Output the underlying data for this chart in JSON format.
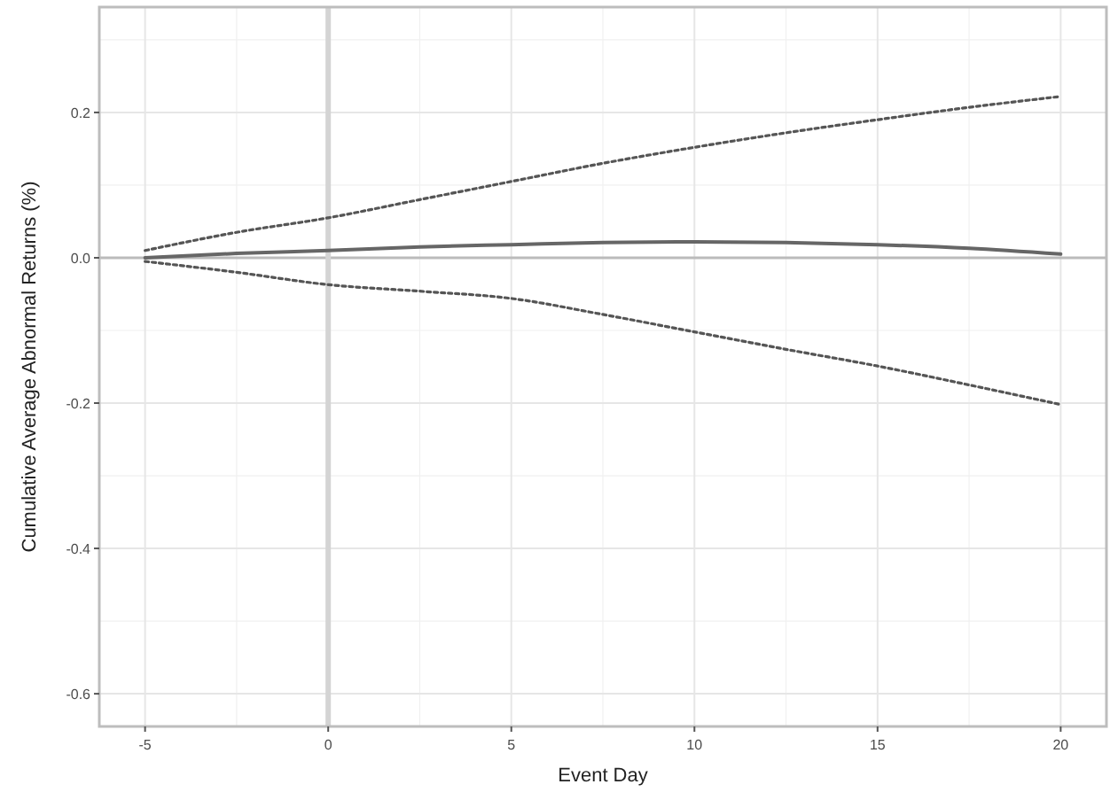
{
  "chart_data": {
    "type": "line",
    "xlabel": "Event Day",
    "ylabel": "Cumulative Average Abnormal Returns (%)",
    "xlim": [
      -6.25,
      21.25
    ],
    "xticks": [
      -5,
      0,
      5,
      10,
      15,
      20
    ],
    "ylim": [
      -0.645,
      0.345
    ],
    "yticks": [
      -0.6,
      -0.4,
      -0.2,
      {
        "value": 0,
        "label": "0.0"
      },
      0.2
    ],
    "grid": true,
    "ref_lines": [
      {
        "axis": "y",
        "value": 0,
        "color": "#bbbbbb"
      },
      {
        "axis": "x",
        "value": 0,
        "color": "#d4d4d4"
      }
    ],
    "series": [
      {
        "color": "#555555",
        "line_style": "dotted",
        "x": [
          -5,
          -2.5,
          0,
          2.5,
          5,
          7.5,
          10,
          12.5,
          15,
          17.5,
          20
        ],
        "values": [
          0.01,
          0.035,
          0.055,
          0.08,
          0.105,
          0.13,
          0.152,
          0.172,
          0.19,
          0.207,
          0.222
        ]
      },
      {
        "color": "#666666",
        "line_style": "solid",
        "x": [
          -5,
          -2.5,
          0,
          2.5,
          5,
          7.5,
          10,
          12.5,
          15,
          17.5,
          20
        ],
        "values": [
          0,
          0.006,
          0.01,
          0.015,
          0.018,
          0.021,
          0.022,
          0.021,
          0.018,
          0.013,
          0.005
        ]
      },
      {
        "color": "#555555",
        "line_style": "dotted",
        "x": [
          -5,
          -2.5,
          0,
          2.5,
          5,
          7.5,
          10,
          12.5,
          15,
          17.5,
          20
        ],
        "values": [
          -0.005,
          -0.02,
          -0.037,
          -0.046,
          -0.056,
          -0.078,
          -0.102,
          -0.126,
          -0.149,
          -0.175,
          -0.202
        ]
      }
    ]
  }
}
